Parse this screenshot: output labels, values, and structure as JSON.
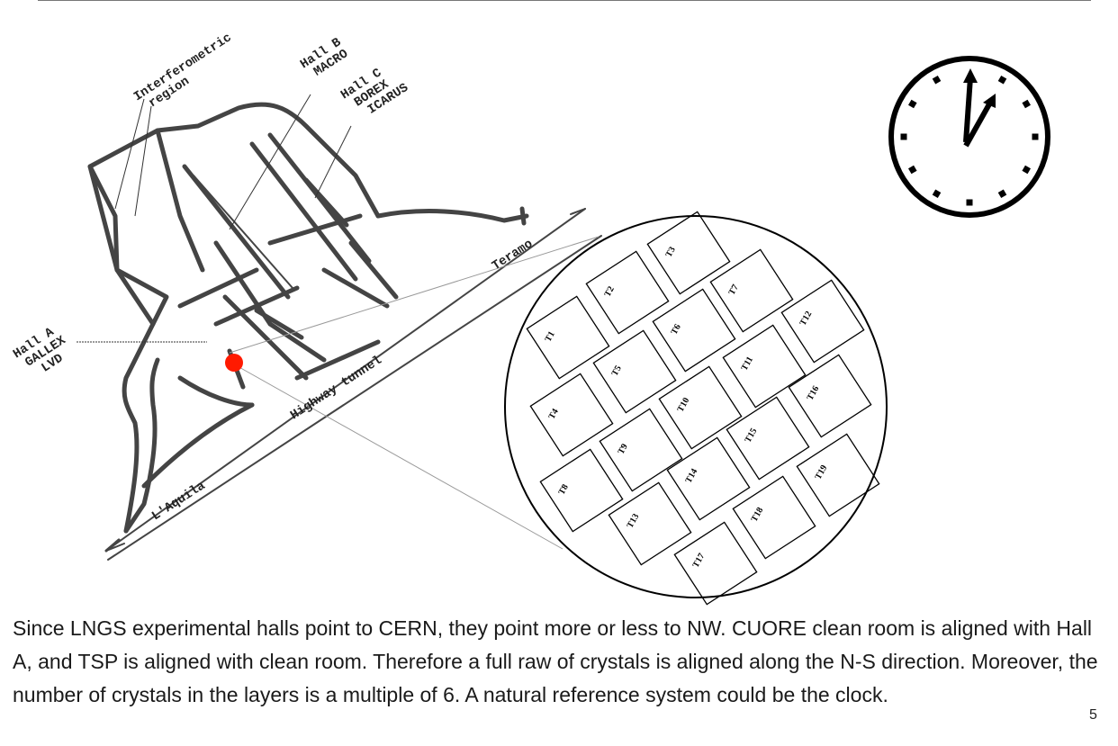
{
  "map": {
    "labels": {
      "interferometric": [
        "Interferometric",
        "region"
      ],
      "hall_b": [
        "Hall B",
        "MACRO"
      ],
      "hall_c": [
        "Hall C",
        "BOREX",
        "ICARUS"
      ],
      "hall_a": [
        "Hall A",
        "GALLEX",
        "LVD"
      ],
      "teramo": "Teramo",
      "highway": "Highway tunnel",
      "aquila": "L'Aquila"
    },
    "marker_color": "#ff1a00"
  },
  "crystals": [
    "T1",
    "T2",
    "T3",
    "T4",
    "T5",
    "T6",
    "T7",
    "T8",
    "T9",
    "T10",
    "T11",
    "T12",
    "T13",
    "T14",
    "T15",
    "T16",
    "T17",
    "T18",
    "T19"
  ],
  "caption": "Since LNGS experimental halls point to CERN, they point more or less to NW. CUORE clean room is aligned with Hall A, and TSP is aligned with clean room. Therefore  a full raw of crystals is aligned along the N-S direction. Moreover, the number of crystals in the layers is a multiple of 6. A natural reference system could be the clock.",
  "page_number": "5"
}
